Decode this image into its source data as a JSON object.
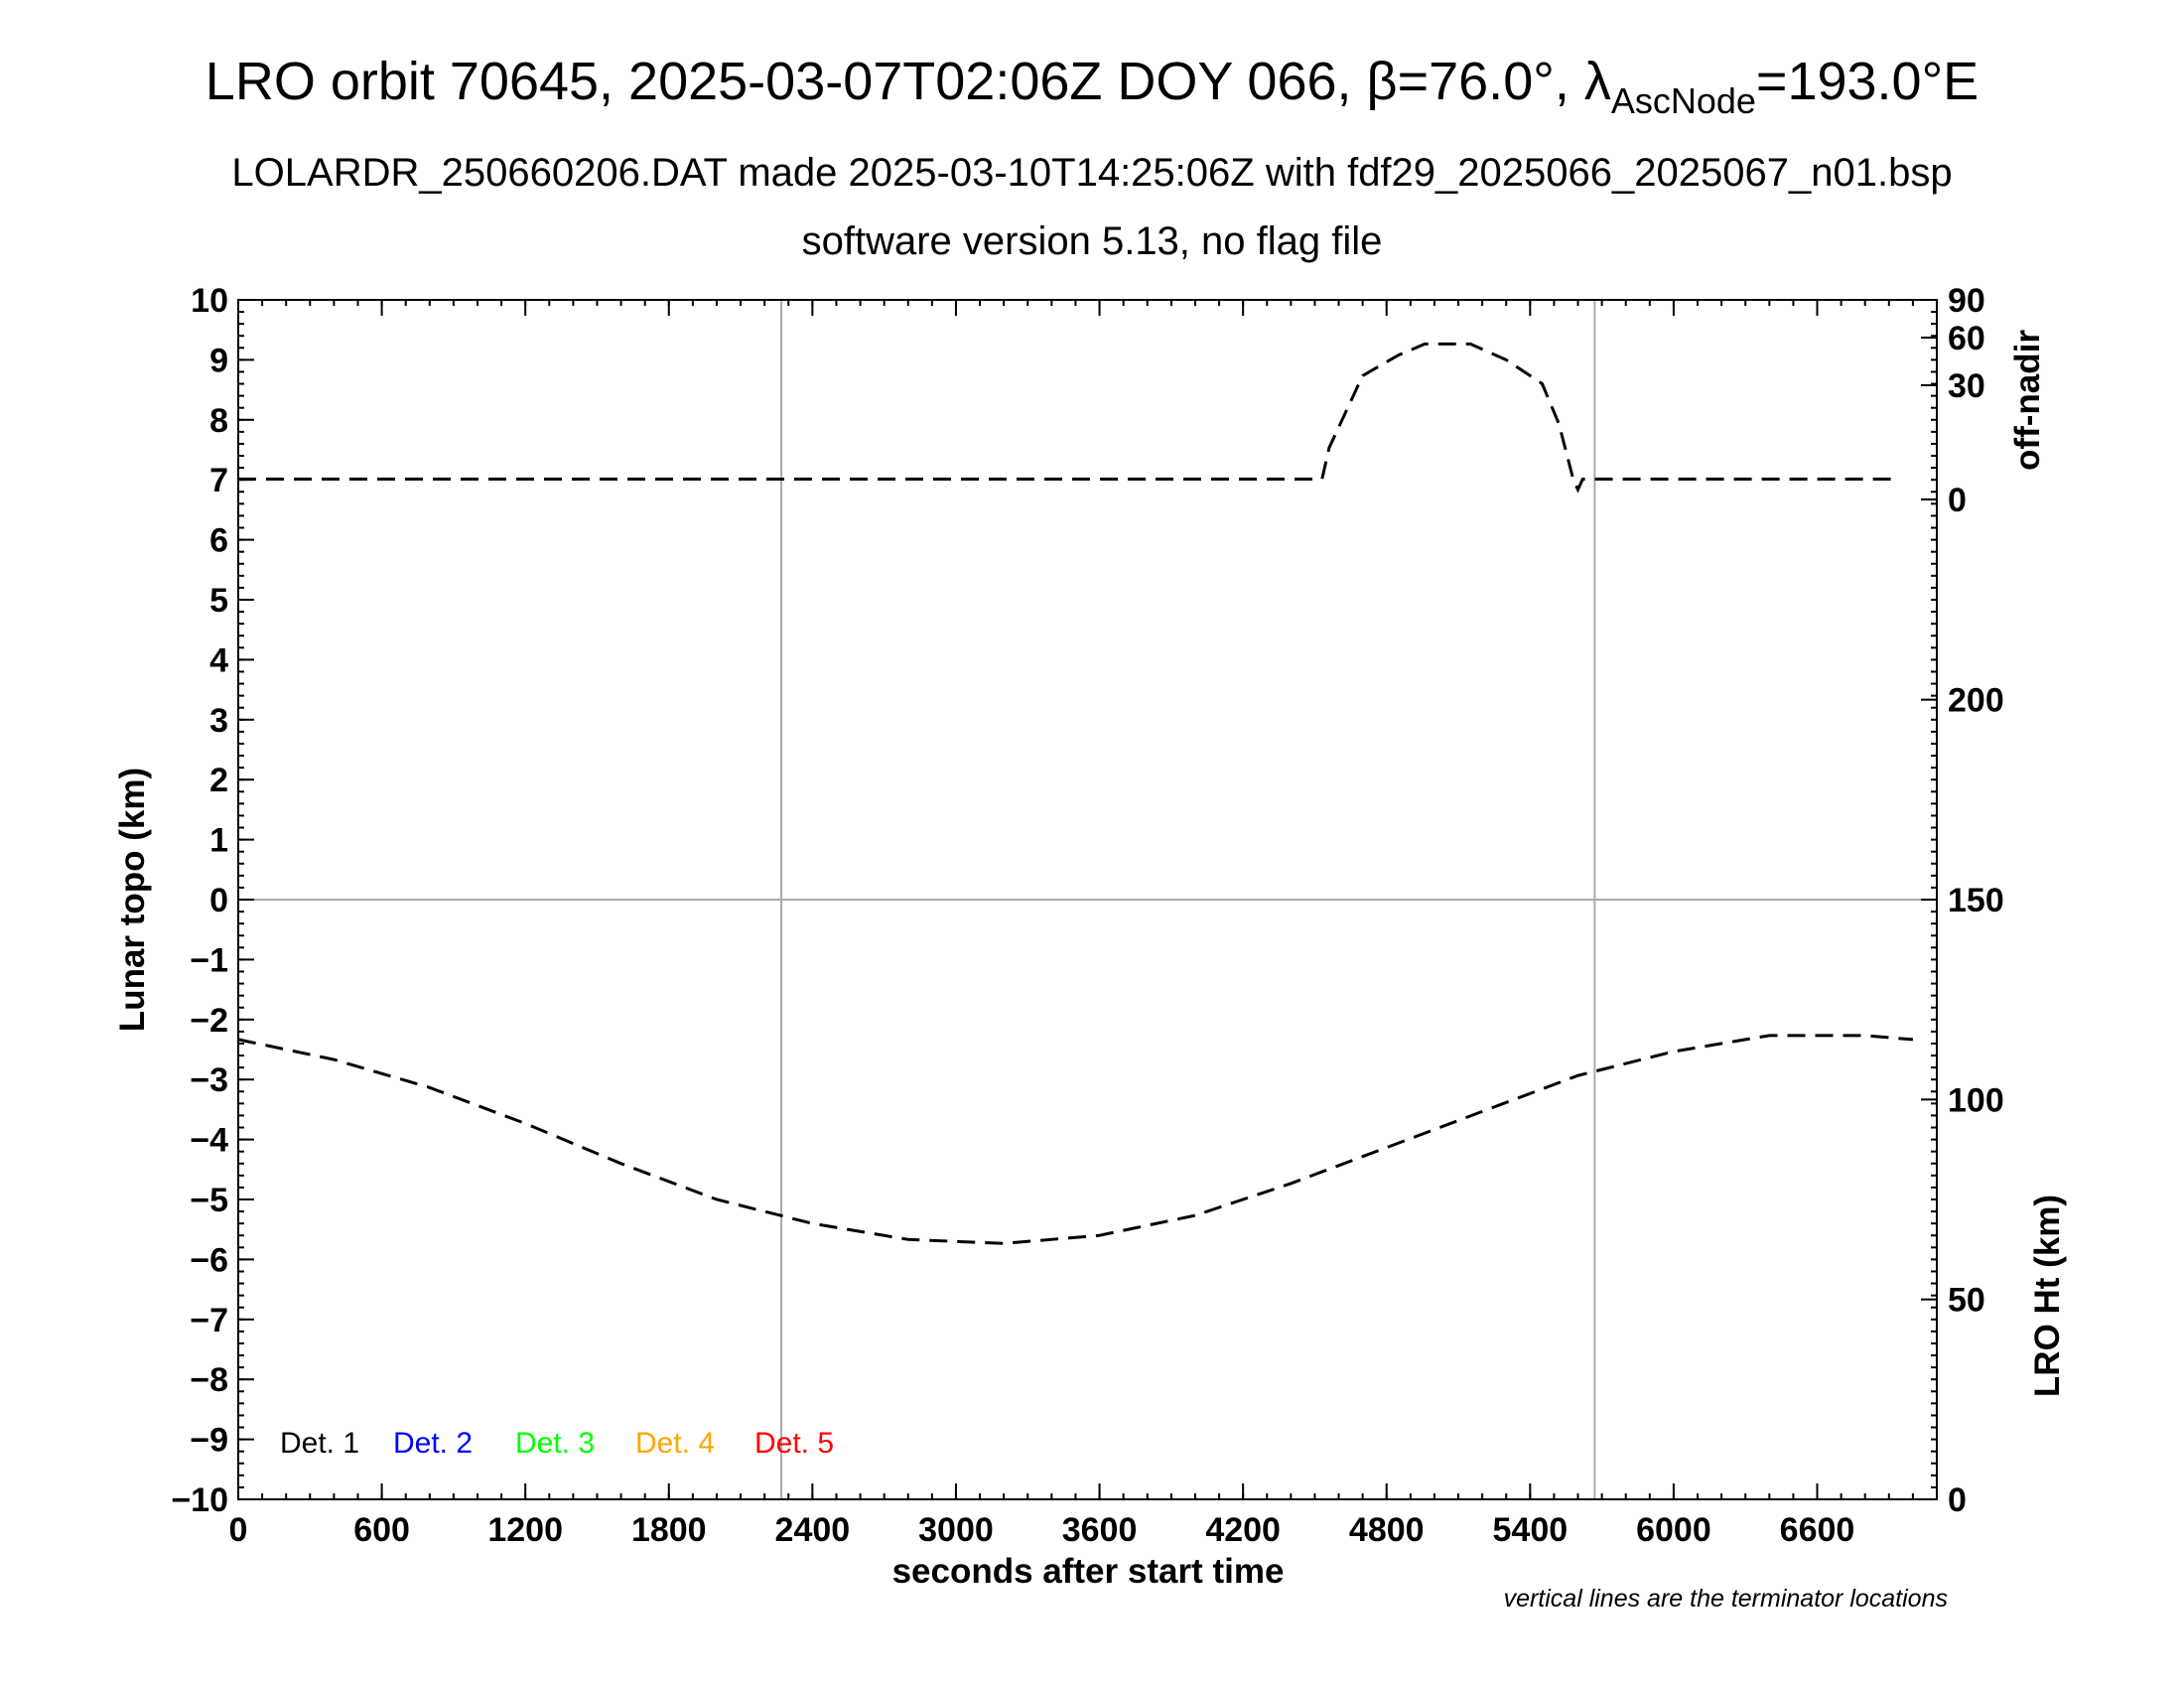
{
  "chart_data": {
    "type": "line",
    "title": {
      "main": "LRO orbit 70645, 2025-03-07T02:06Z DOY 066, β=76.0°, λ",
      "sub": "AscNode",
      "tail": "=193.0°E"
    },
    "subtitle_1": "LOLARDR_250660206.DAT made 2025-03-10T14:25:06Z with fdf29_2025066_2025067_n01.bsp",
    "subtitle_2": "software version 5.13, no flag file",
    "xlabel": "seconds after start time",
    "ylabel_left": "Lunar topo (km)",
    "ylabel_right_top": "off-nadir",
    "ylabel_right_bottom": "LRO Ht (km)",
    "xlim": [
      0,
      7100
    ],
    "ylim": [
      -10,
      10
    ],
    "x_ticks": [
      "0",
      "600",
      "1200",
      "1800",
      "2400",
      "3000",
      "3600",
      "4200",
      "4800",
      "5400",
      "6000",
      "6600"
    ],
    "y_ticks": [
      "10",
      "9",
      "8",
      "7",
      "6",
      "5",
      "4",
      "3",
      "2",
      "1",
      "0",
      "−1",
      "−2",
      "−3",
      "−4",
      "−5",
      "−6",
      "−7",
      "−8",
      "−9",
      "−10"
    ],
    "offnadir_ticks": [
      "90",
      "60",
      "30",
      "0"
    ],
    "height_ticks": [
      "200",
      "150",
      "100",
      "50",
      "0"
    ],
    "offnadir_range": [
      0,
      90
    ],
    "height_range": [
      0,
      300
    ],
    "terminator_x": [
      2270,
      5670
    ],
    "grid": "horizontal line at 0 km and vertical lines at terminators",
    "legend": [
      {
        "label": "Det. 1",
        "color": "#000000"
      },
      {
        "label": "Det. 2",
        "color": "#0000ff"
      },
      {
        "label": "Det. 3",
        "color": "#00ff00"
      },
      {
        "label": "Det. 4",
        "color": "#ffa500"
      },
      {
        "label": "Det. 5",
        "color": "#ff0000"
      }
    ],
    "legend_placement": "bottom-left",
    "note": "vertical lines are the terminator locations",
    "series": [
      {
        "axis": "off-nadir (deg)",
        "style": "dashed",
        "x": [
          0,
          1000,
          2000,
          3000,
          4000,
          4530,
          4560,
          4700,
          4850,
          4960,
          5050,
          5150,
          5300,
          5450,
          5520,
          5550,
          5580,
          5600,
          5620,
          6000,
          6940
        ],
        "values": [
          3,
          3,
          3,
          3,
          3,
          3,
          12,
          36,
          49,
          56,
          56,
          56,
          46,
          31,
          19,
          11,
          3,
          0,
          3,
          3,
          3
        ]
      },
      {
        "axis": "LRO Ht (km)",
        "style": "dashed",
        "x": [
          0,
          400,
          800,
          1200,
          1600,
          2000,
          2400,
          2800,
          3200,
          3600,
          4000,
          4400,
          4800,
          5200,
          5600,
          6000,
          6400,
          6800,
          7000
        ],
        "values": [
          115,
          110,
          103,
          94,
          84,
          75,
          69,
          65,
          64,
          66,
          71,
          79,
          88,
          97,
          106,
          112,
          116,
          116,
          115
        ]
      }
    ]
  }
}
